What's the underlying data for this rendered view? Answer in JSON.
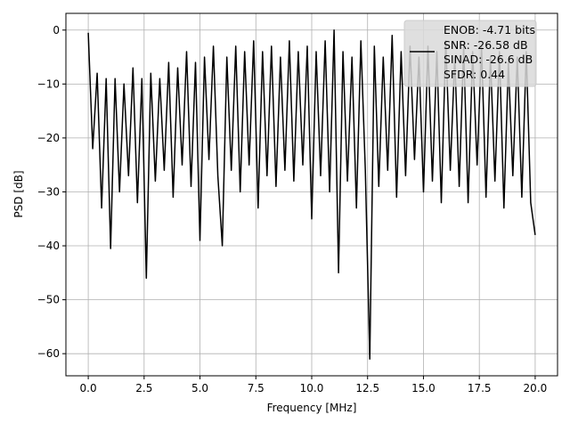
{
  "chart_data": {
    "type": "line",
    "title": "",
    "xlabel": "Frequency [MHz]",
    "ylabel": "PSD [dB]",
    "xlim": [
      -1.0,
      21.0
    ],
    "ylim": [
      -64.1,
      3.1
    ],
    "grid": true,
    "xticks": [
      0,
      2.5,
      5,
      7.5,
      10,
      12.5,
      15,
      17.5,
      20
    ],
    "xtick_labels": [
      "0.0",
      "2.5",
      "5.0",
      "7.5",
      "10.0",
      "12.5",
      "15.0",
      "17.5",
      "20.0"
    ],
    "yticks": [
      0,
      -10,
      -20,
      -30,
      -40,
      -50,
      -60
    ],
    "ytick_labels": [
      "0",
      "−10",
      "−20",
      "−30",
      "−40",
      "−50",
      "−60"
    ],
    "legend_placement": "upper-right",
    "line_color": "#000000",
    "legend_lines": [
      "ENOB: -4.71 bits",
      "SNR: -26.58 dB",
      "SINAD: -26.6 dB",
      "SFDR: 0.44"
    ],
    "x": [
      0,
      0.2,
      0.4,
      0.6,
      0.8,
      1,
      1.2,
      1.4,
      1.6,
      1.8,
      2,
      2.2,
      2.4,
      2.6,
      2.8,
      3,
      3.2,
      3.4,
      3.6,
      3.8,
      4,
      4.2,
      4.4,
      4.6,
      4.8,
      5,
      5.2,
      5.4,
      5.6,
      5.8,
      6,
      6.2,
      6.4,
      6.6,
      6.8,
      7,
      7.2,
      7.4,
      7.6,
      7.8,
      8,
      8.2,
      8.4,
      8.6,
      8.8,
      9,
      9.2,
      9.4,
      9.6,
      9.8,
      10,
      10.2,
      10.4,
      10.6,
      10.8,
      11,
      11.2,
      11.4,
      11.6,
      11.8,
      12,
      12.2,
      12.4,
      12.6,
      12.8,
      13,
      13.2,
      13.4,
      13.6,
      13.8,
      14,
      14.2,
      14.4,
      14.6,
      14.8,
      15,
      15.2,
      15.4,
      15.6,
      15.8,
      16,
      16.2,
      16.4,
      16.6,
      16.8,
      17,
      17.2,
      17.4,
      17.6,
      17.8,
      18,
      18.2,
      18.4,
      18.6,
      18.8,
      19,
      19.2,
      19.4,
      19.6,
      19.8,
      20
    ],
    "y": [
      -0.5,
      -22,
      -8,
      -33,
      -9,
      -40.5,
      -9,
      -30,
      -10,
      -27,
      -7,
      -32,
      -9,
      -46,
      -8,
      -28,
      -9,
      -26,
      -6,
      -31,
      -7,
      -25,
      -4,
      -29,
      -6,
      -39,
      -5,
      -24,
      -3,
      -27,
      -40,
      -5,
      -26,
      -3,
      -30,
      -4,
      -25,
      -2,
      -33,
      -4,
      -27,
      -3,
      -29,
      -5,
      -26,
      -2,
      -28,
      -4,
      -25,
      -3,
      -35,
      -4,
      -27,
      -2,
      -30,
      0,
      -45,
      -4,
      -28,
      -5,
      -33,
      -2,
      -26,
      -61,
      -3,
      -29,
      -5,
      -26,
      -1,
      -31,
      -4,
      -27,
      -3,
      -24,
      -5,
      -30,
      -3,
      -28,
      -4,
      -32,
      -2,
      -26,
      -5,
      -29,
      -3,
      -32,
      -4,
      -25,
      -3,
      -31,
      -5,
      -28,
      -4,
      -33,
      -6,
      -27,
      -5,
      -31,
      -4,
      -32,
      -38
    ]
  }
}
